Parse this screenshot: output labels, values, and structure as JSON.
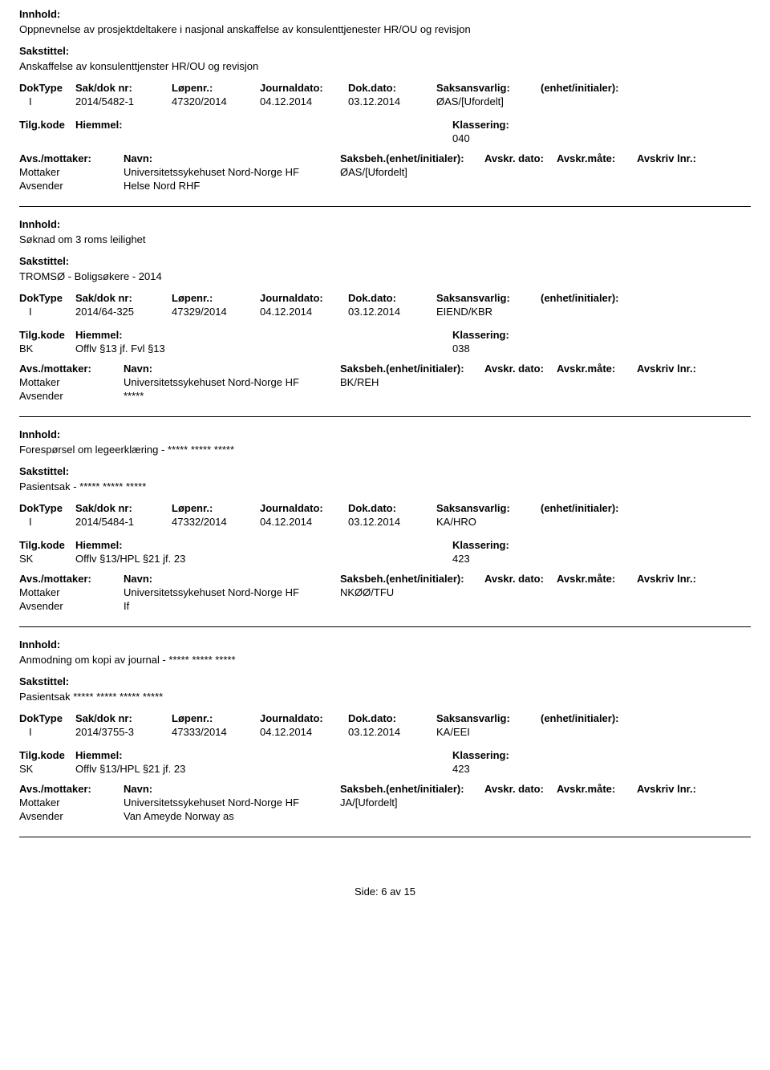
{
  "labels": {
    "innhold": "Innhold:",
    "sakstittel": "Sakstittel:",
    "dokType": "DokType",
    "sakDokNr": "Sak/dok nr:",
    "lopenr": "Løpenr.:",
    "journaldato": "Journaldato:",
    "dokDato": "Dok.dato:",
    "saksansvarlig": "Saksansvarlig:",
    "enhetInitialer": "(enhet/initialer):",
    "tilgKode": "Tilg.kode",
    "hjemmel": "Hiemmel:",
    "klassering": "Klassering:",
    "avsMottaker": "Avs./mottaker:",
    "navn": "Navn:",
    "saksbeh": "Saksbeh.(enhet/initialer):",
    "avskrDato": "Avskr. dato:",
    "avskrMate": "Avskr.måte:",
    "avskrivLnr": "Avskriv lnr.:",
    "mottaker": "Mottaker",
    "avsender": "Avsender"
  },
  "entries": [
    {
      "innhold": "Oppnevnelse av prosjektdeltakere i nasjonal anskaffelse av konsulenttjenester HR/OU og revisjon",
      "sakstittel": "Anskaffelse av konsulenttjenster HR/OU og revisjon",
      "dokType": "I",
      "sakDokNr": "2014/5482-1",
      "lopenr": "47320/2014",
      "journaldato": "04.12.2014",
      "dokDato": "03.12.2014",
      "saksansvarlig": "ØAS/[Ufordelt]",
      "tilgKode": "",
      "hjemmel": "",
      "klassering": "040",
      "mottakerNavn": "Universitetssykehuset Nord-Norge HF",
      "mottakerSaksbeh": "ØAS/[Ufordelt]",
      "avsenderNavn": "Helse Nord RHF"
    },
    {
      "innhold": "Søknad om 3 roms leilighet",
      "sakstittel": "TROMSØ -  Boligsøkere - 2014",
      "dokType": "I",
      "sakDokNr": "2014/64-325",
      "lopenr": "47329/2014",
      "journaldato": "04.12.2014",
      "dokDato": "03.12.2014",
      "saksansvarlig": "EIEND/KBR",
      "tilgKode": "BK",
      "hjemmel": "Offlv §13 jf. Fvl §13",
      "klassering": "038",
      "mottakerNavn": "Universitetssykehuset Nord-Norge HF",
      "mottakerSaksbeh": "BK/REH",
      "avsenderNavn": "*****"
    },
    {
      "innhold": "Forespørsel om legeerklæring - ***** ***** *****",
      "sakstittel": "Pasientsak - ***** ***** *****",
      "dokType": "I",
      "sakDokNr": "2014/5484-1",
      "lopenr": "47332/2014",
      "journaldato": "04.12.2014",
      "dokDato": "03.12.2014",
      "saksansvarlig": "KA/HRO",
      "tilgKode": "SK",
      "hjemmel": "Offlv §13/HPL §21 jf. 23",
      "klassering": "423",
      "mottakerNavn": "Universitetssykehuset Nord-Norge HF",
      "mottakerSaksbeh": "NKØØ/TFU",
      "avsenderNavn": "If"
    },
    {
      "innhold": "Anmodning om kopi av journal  - ***** ***** *****",
      "sakstittel": "Pasientsak ***** ***** ***** *****",
      "dokType": "I",
      "sakDokNr": "2014/3755-3",
      "lopenr": "47333/2014",
      "journaldato": "04.12.2014",
      "dokDato": "03.12.2014",
      "saksansvarlig": "KA/EEI",
      "tilgKode": "SK",
      "hjemmel": "Offlv §13/HPL §21 jf. 23",
      "klassering": "423",
      "mottakerNavn": "Universitetssykehuset Nord-Norge HF",
      "mottakerSaksbeh": "JA/[Ufordelt]",
      "avsenderNavn": "Van Ameyde Norway as"
    }
  ],
  "footer": {
    "prefix": "Side:",
    "page": "6",
    "sep": "av",
    "total": "15"
  }
}
